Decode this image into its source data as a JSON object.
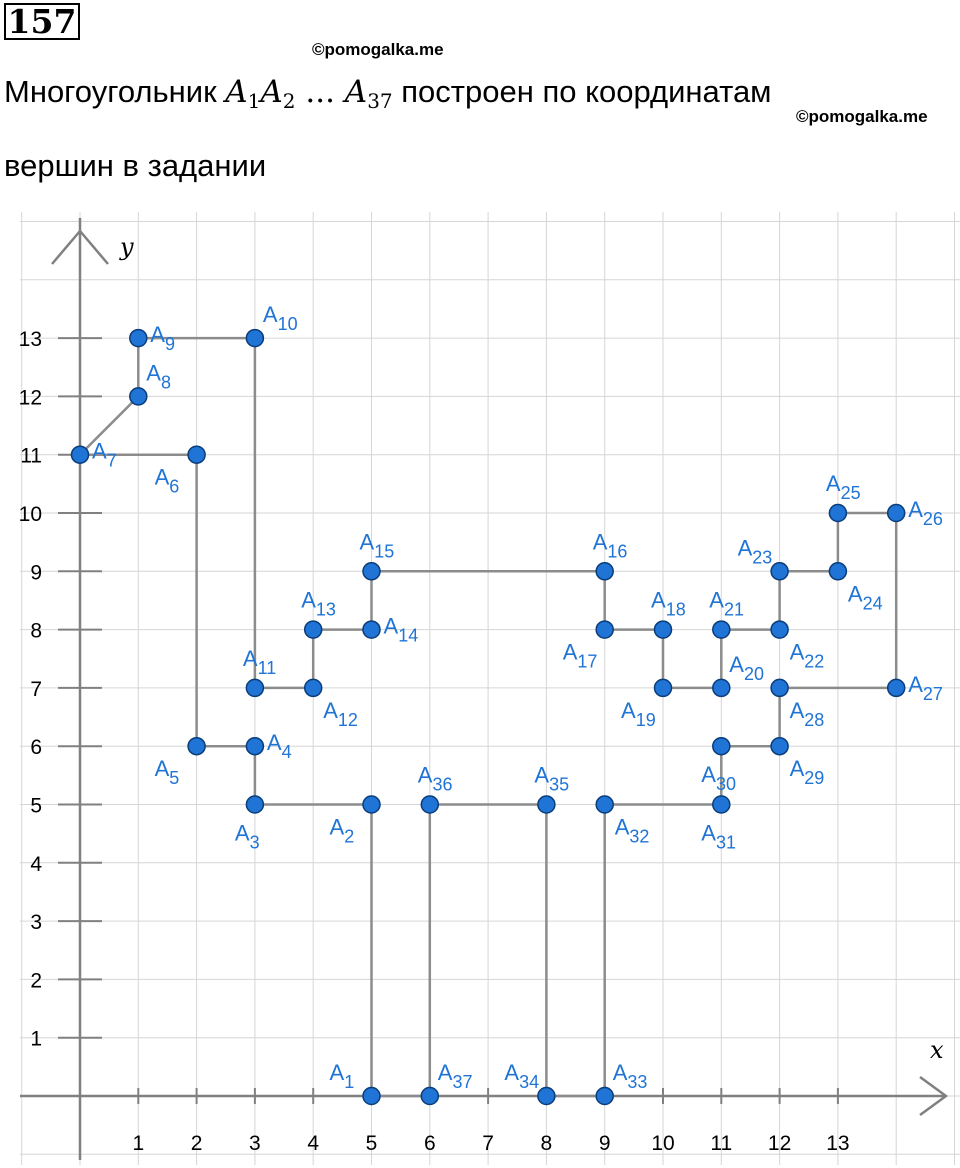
{
  "problem": {
    "number": "157",
    "watermark_top": "©pomogalka.me",
    "watermark_right": "©pomogalka.me",
    "text_before": "Многоугольник",
    "v1": "A",
    "v1_sub": "1",
    "v2": "A",
    "v2_sub": "2",
    "dots": "...",
    "v3": "A",
    "v3_sub": "37",
    "text_after": "построен по координатам",
    "text_line2": "вершин в задании"
  },
  "colors": {
    "grid": "#d6d6d6",
    "axis": "#808080",
    "edge": "#8c8c8c",
    "point": "#1f74d6",
    "point_stroke": "#0a3d7a",
    "label": "#1f74d6"
  },
  "chart_data": {
    "type": "scatter",
    "closed": true,
    "xlabel": "x",
    "ylabel": "y",
    "xlim": [
      -1,
      14.5
    ],
    "ylim": [
      -1,
      14.5
    ],
    "x_ticks": [
      1,
      2,
      3,
      4,
      5,
      6,
      7,
      8,
      9,
      10,
      11,
      12,
      13
    ],
    "x_tick_labels": [
      "1",
      "2",
      "3",
      "4",
      "5",
      "6",
      "7",
      "8",
      "9",
      "10",
      "11",
      "12",
      "13"
    ],
    "y_ticks": [
      1,
      2,
      3,
      4,
      5,
      6,
      7,
      8,
      9,
      10,
      11,
      12,
      13
    ],
    "y_tick_labels": [
      "1",
      "2",
      "3",
      "4",
      "5",
      "6",
      "7",
      "8",
      "9",
      "10",
      "11",
      "12",
      "13"
    ],
    "points": [
      {
        "name": "A",
        "sub": "1",
        "x": 5,
        "y": 0,
        "lpos": "ul"
      },
      {
        "name": "A",
        "sub": "2",
        "x": 5,
        "y": 5,
        "lpos": "bl"
      },
      {
        "name": "A",
        "sub": "3",
        "x": 3,
        "y": 5,
        "lpos": "b"
      },
      {
        "name": "A",
        "sub": "4",
        "x": 3,
        "y": 6,
        "lpos": "r"
      },
      {
        "name": "A",
        "sub": "5",
        "x": 2,
        "y": 6,
        "lpos": "bl"
      },
      {
        "name": "A",
        "sub": "6",
        "x": 2,
        "y": 11,
        "lpos": "bl"
      },
      {
        "name": "A",
        "sub": "7",
        "x": 0,
        "y": 11,
        "lpos": "r"
      },
      {
        "name": "A",
        "sub": "8",
        "x": 1,
        "y": 12,
        "lpos": "ur"
      },
      {
        "name": "A",
        "sub": "9",
        "x": 1,
        "y": 13,
        "lpos": "r"
      },
      {
        "name": "A",
        "sub": "10",
        "x": 3,
        "y": 13,
        "lpos": "ur"
      },
      {
        "name": "A",
        "sub": "11",
        "x": 3,
        "y": 7,
        "lpos": "u"
      },
      {
        "name": "A",
        "sub": "12",
        "x": 4,
        "y": 7,
        "lpos": "br"
      },
      {
        "name": "A",
        "sub": "13",
        "x": 4,
        "y": 8,
        "lpos": "u"
      },
      {
        "name": "A",
        "sub": "14",
        "x": 5,
        "y": 8,
        "lpos": "r"
      },
      {
        "name": "A",
        "sub": "15",
        "x": 5,
        "y": 9,
        "lpos": "u"
      },
      {
        "name": "A",
        "sub": "16",
        "x": 9,
        "y": 9,
        "lpos": "u"
      },
      {
        "name": "A",
        "sub": "17",
        "x": 9,
        "y": 8,
        "lpos": "bl"
      },
      {
        "name": "A",
        "sub": "18",
        "x": 10,
        "y": 8,
        "lpos": "u"
      },
      {
        "name": "A",
        "sub": "19",
        "x": 10,
        "y": 7,
        "lpos": "bl"
      },
      {
        "name": "A",
        "sub": "20",
        "x": 11,
        "y": 7,
        "lpos": "ur"
      },
      {
        "name": "A",
        "sub": "21",
        "x": 11,
        "y": 8,
        "lpos": "u"
      },
      {
        "name": "A",
        "sub": "22",
        "x": 12,
        "y": 8,
        "lpos": "br"
      },
      {
        "name": "A",
        "sub": "23",
        "x": 12,
        "y": 9,
        "lpos": "ul"
      },
      {
        "name": "A",
        "sub": "24",
        "x": 13,
        "y": 9,
        "lpos": "br"
      },
      {
        "name": "A",
        "sub": "25",
        "x": 13,
        "y": 10,
        "lpos": "u"
      },
      {
        "name": "A",
        "sub": "26",
        "x": 14,
        "y": 10,
        "lpos": "r"
      },
      {
        "name": "A",
        "sub": "27",
        "x": 14,
        "y": 7,
        "lpos": "r"
      },
      {
        "name": "A",
        "sub": "28",
        "x": 12,
        "y": 7,
        "lpos": "br"
      },
      {
        "name": "A",
        "sub": "29",
        "x": 12,
        "y": 6,
        "lpos": "br"
      },
      {
        "name": "A",
        "sub": "30",
        "x": 11,
        "y": 6,
        "lpos": "b"
      },
      {
        "name": "A",
        "sub": "31",
        "x": 11,
        "y": 5,
        "lpos": "b"
      },
      {
        "name": "A",
        "sub": "32",
        "x": 9,
        "y": 5,
        "lpos": "br"
      },
      {
        "name": "A",
        "sub": "33",
        "x": 9,
        "y": 0,
        "lpos": "ur"
      },
      {
        "name": "A",
        "sub": "34",
        "x": 8,
        "y": 0,
        "lpos": "ul"
      },
      {
        "name": "A",
        "sub": "35",
        "x": 8,
        "y": 5,
        "lpos": "u"
      },
      {
        "name": "A",
        "sub": "36",
        "x": 6,
        "y": 5,
        "lpos": "u"
      },
      {
        "name": "A",
        "sub": "37",
        "x": 6,
        "y": 0,
        "lpos": "ur"
      }
    ]
  }
}
